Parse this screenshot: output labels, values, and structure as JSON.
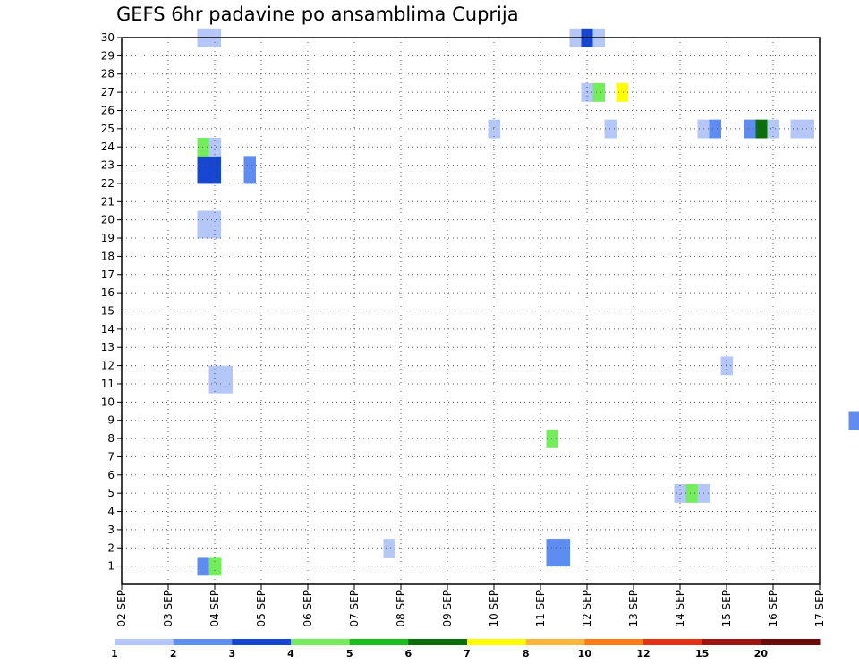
{
  "chart_data": {
    "type": "heatmap",
    "title": "GEFS 6hr padavine po ansamblima Cuprija",
    "xlabel": "",
    "ylabel": "",
    "x_tick_labels": [
      "02 SEP",
      "03 SEP",
      "04 SEP",
      "05 SEP",
      "06 SEP",
      "07 SEP",
      "08 SEP",
      "09 SEP",
      "10 SEP",
      "11 SEP",
      "12 SEP",
      "13 SEP",
      "14 SEP",
      "15 SEP",
      "16 SEP",
      "17 SEP"
    ],
    "x_range_days": [
      0,
      15
    ],
    "y_tick_labels": [
      1,
      2,
      3,
      4,
      5,
      6,
      7,
      8,
      9,
      10,
      11,
      12,
      13,
      14,
      15,
      16,
      17,
      18,
      19,
      20,
      21,
      22,
      23,
      24,
      25,
      26,
      27,
      28,
      29,
      30
    ],
    "y_range": [
      0,
      30
    ],
    "grid": true,
    "legend": {
      "placement": "bottom",
      "colors": [
        "#b4c7f8",
        "#5f8cf0",
        "#1646d2",
        "#73ee5a",
        "#19bf19",
        "#0a6e0a",
        "#ffff00",
        "#ffb43c",
        "#ff7a14",
        "#e63214",
        "#a01414",
        "#6b0a0a"
      ],
      "labels": [
        "1",
        "2",
        "3",
        "4",
        "5",
        "6",
        "7",
        "8",
        "10",
        "12",
        "15",
        "20"
      ]
    },
    "cells": [
      {
        "x": 1.75,
        "y": 1,
        "v": 2
      },
      {
        "x": 2.0,
        "y": 1,
        "v": 4
      },
      {
        "x": 5.75,
        "y": 2,
        "v": 1
      },
      {
        "x": 9.25,
        "y": 2,
        "v": 2
      },
      {
        "x": 9.5,
        "y": 2,
        "v": 2
      },
      {
        "x": 9.25,
        "y": 1.5,
        "v": 2
      },
      {
        "x": 9.5,
        "y": 1.5,
        "v": 2
      },
      {
        "x": 12.0,
        "y": 5,
        "v": 1
      },
      {
        "x": 12.25,
        "y": 5,
        "v": 4
      },
      {
        "x": 12.5,
        "y": 5,
        "v": 1
      },
      {
        "x": 9.25,
        "y": 8,
        "v": 4
      },
      {
        "x": 15.75,
        "y": 9,
        "v": 2
      },
      {
        "x": 2.0,
        "y": 11,
        "v": 1
      },
      {
        "x": 2.25,
        "y": 11,
        "v": 1
      },
      {
        "x": 2.0,
        "y": 11.5,
        "v": 1
      },
      {
        "x": 2.25,
        "y": 11.5,
        "v": 1
      },
      {
        "x": 13.0,
        "y": 12,
        "v": 1
      },
      {
        "x": 1.75,
        "y": 19.5,
        "v": 1
      },
      {
        "x": 2.0,
        "y": 19.5,
        "v": 1
      },
      {
        "x": 1.75,
        "y": 20,
        "v": 1
      },
      {
        "x": 2.0,
        "y": 20,
        "v": 1
      },
      {
        "x": 1.75,
        "y": 22.5,
        "v": 3
      },
      {
        "x": 2.0,
        "y": 22.5,
        "v": 3
      },
      {
        "x": 1.75,
        "y": 23,
        "v": 3
      },
      {
        "x": 2.0,
        "y": 23,
        "v": 3
      },
      {
        "x": 2.75,
        "y": 22.5,
        "v": 2
      },
      {
        "x": 2.75,
        "y": 23,
        "v": 2
      },
      {
        "x": 1.75,
        "y": 24,
        "v": 4
      },
      {
        "x": 2.0,
        "y": 24,
        "v": 1
      },
      {
        "x": 8.0,
        "y": 25,
        "v": 1
      },
      {
        "x": 10.5,
        "y": 25,
        "v": 1
      },
      {
        "x": 12.5,
        "y": 25,
        "v": 1
      },
      {
        "x": 12.75,
        "y": 25,
        "v": 2
      },
      {
        "x": 13.5,
        "y": 25,
        "v": 2
      },
      {
        "x": 13.75,
        "y": 25,
        "v": 6
      },
      {
        "x": 14.0,
        "y": 25,
        "v": 1
      },
      {
        "x": 14.5,
        "y": 25,
        "v": 1
      },
      {
        "x": 14.75,
        "y": 25,
        "v": 1
      },
      {
        "x": 10.0,
        "y": 27,
        "v": 1
      },
      {
        "x": 10.25,
        "y": 27,
        "v": 4
      },
      {
        "x": 10.75,
        "y": 27,
        "v": 7
      },
      {
        "x": 1.75,
        "y": 30,
        "v": 1
      },
      {
        "x": 2.0,
        "y": 30,
        "v": 1
      },
      {
        "x": 9.75,
        "y": 30,
        "v": 1
      },
      {
        "x": 10.0,
        "y": 30,
        "v": 3
      },
      {
        "x": 10.25,
        "y": 30,
        "v": 1
      }
    ]
  }
}
